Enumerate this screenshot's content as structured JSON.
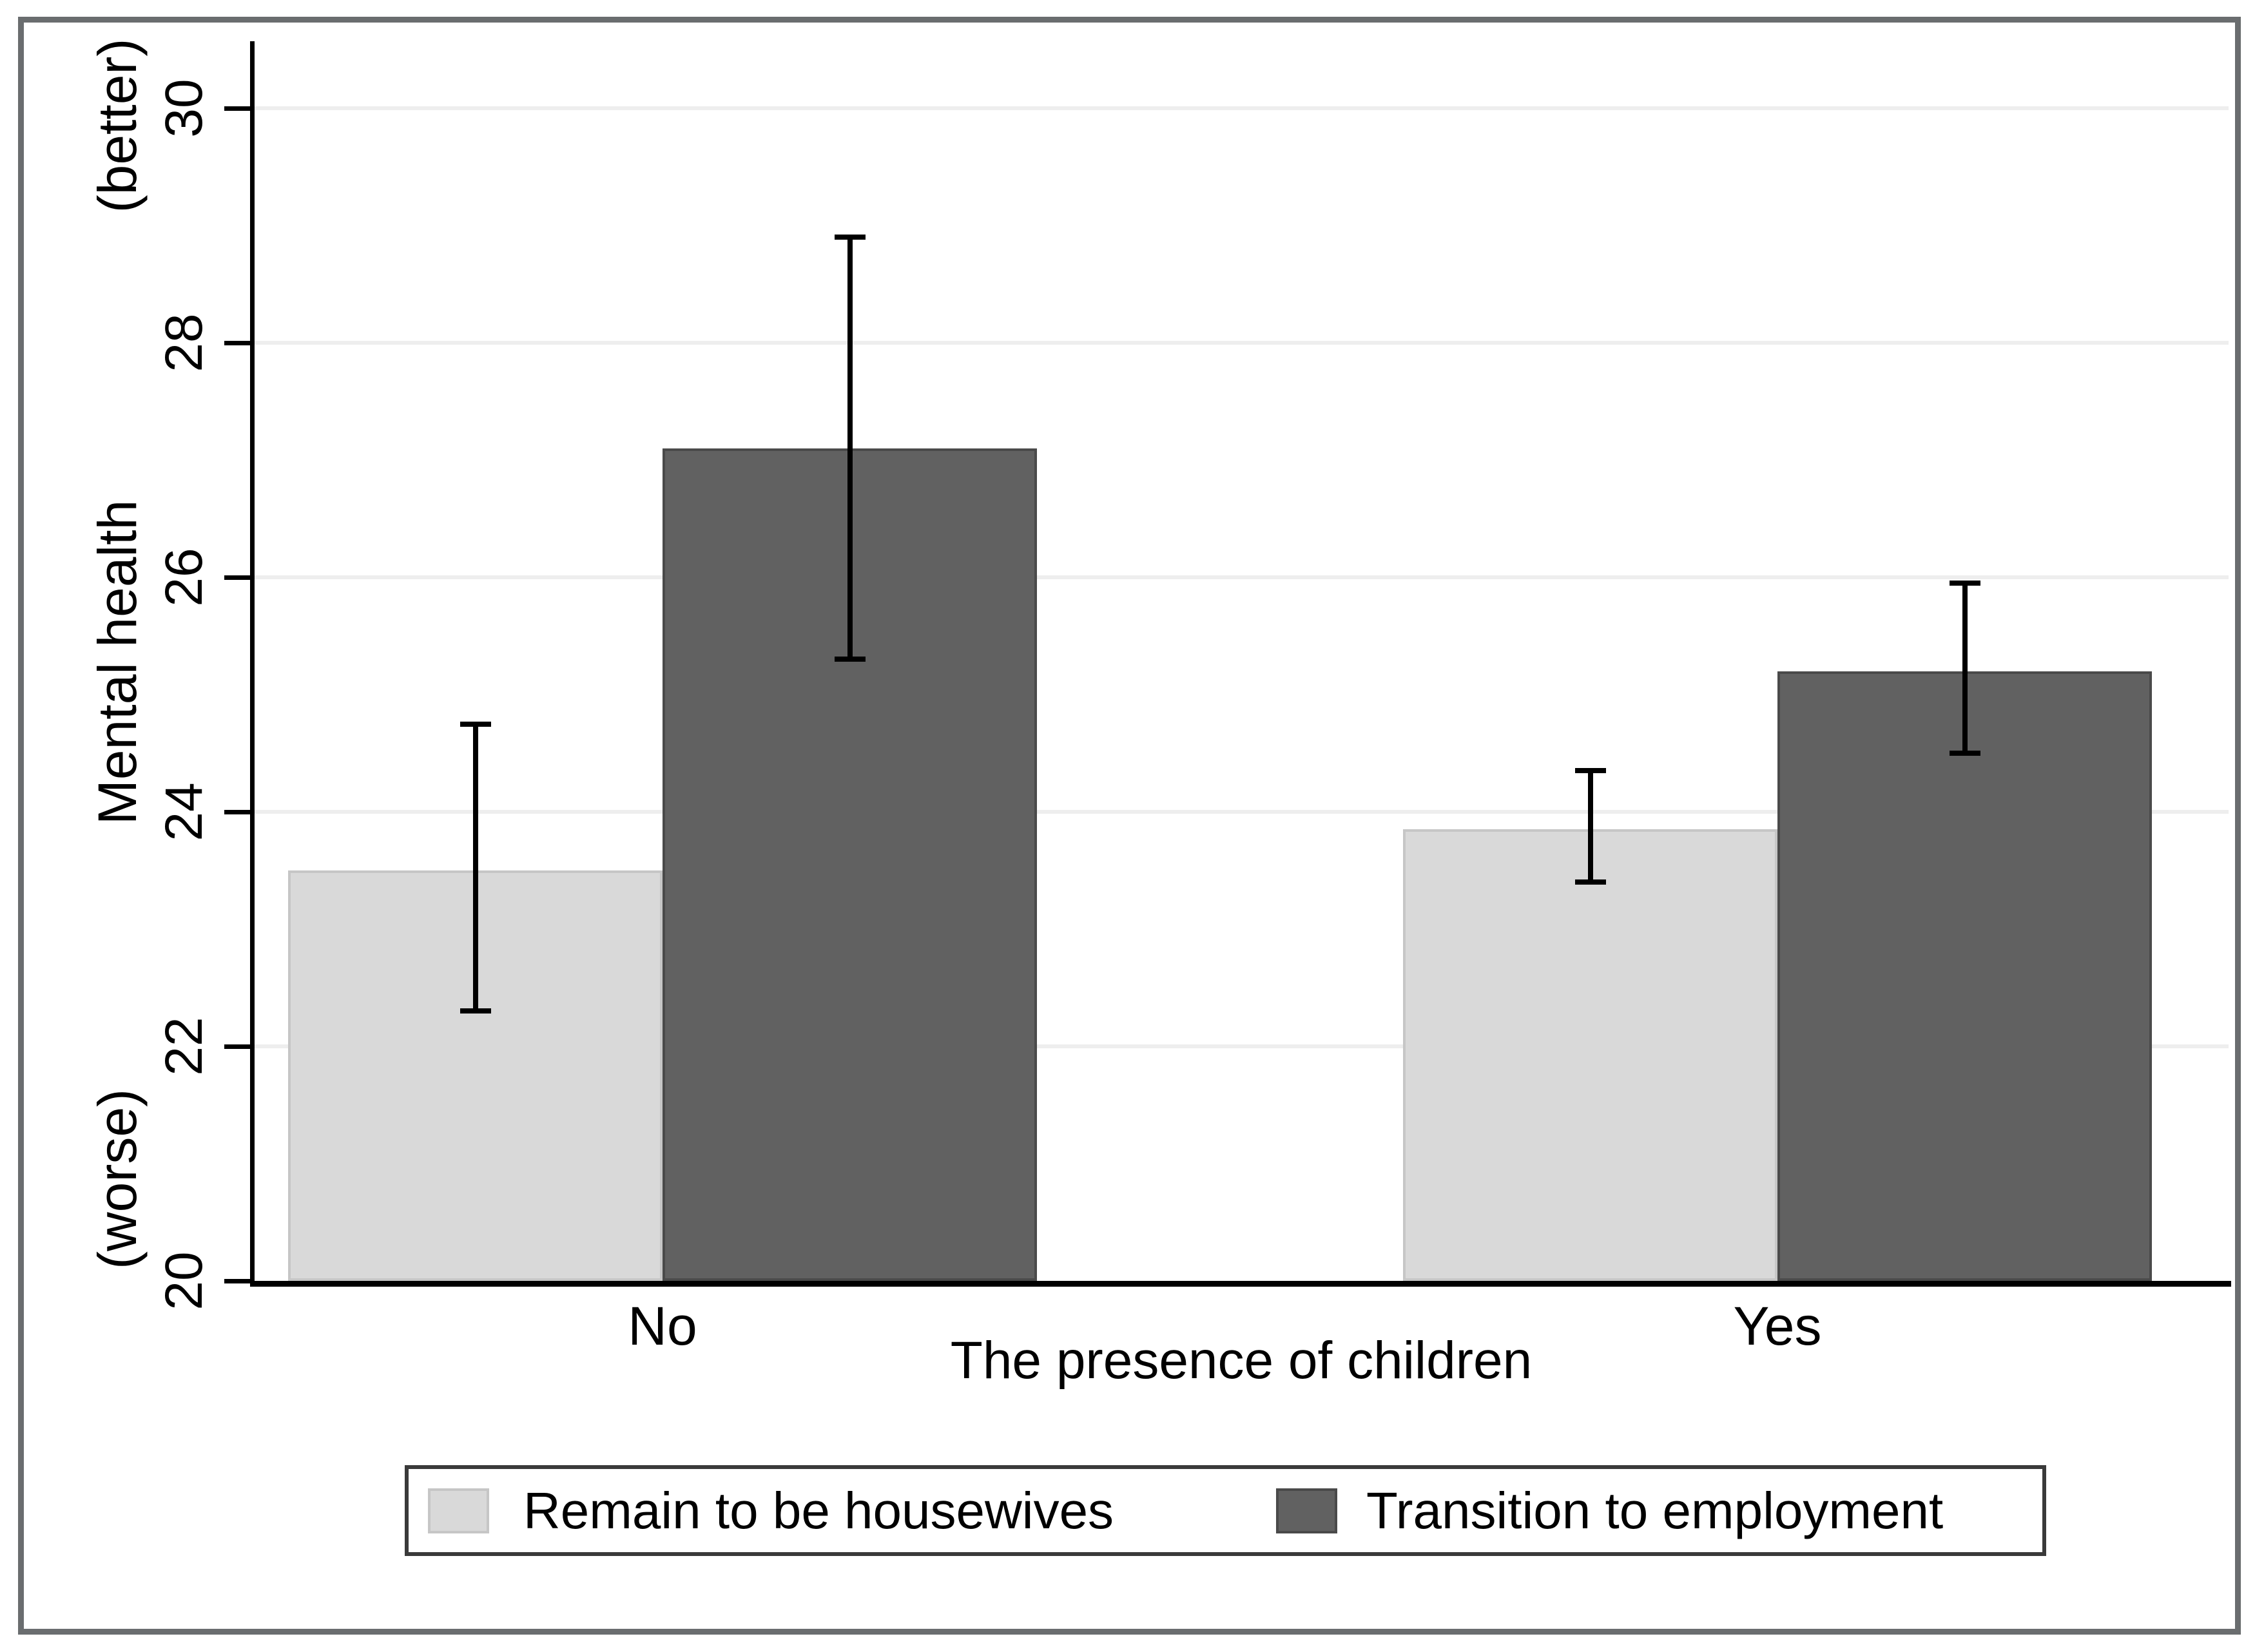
{
  "figure": {
    "background": "#ffffff",
    "frame_color": "#6a6d6f",
    "gridline_color": "#eeeeee",
    "axis_color": "#000000"
  },
  "y_axis": {
    "title": "Mental health",
    "top_label": "(better)",
    "bottom_label": "(worse)",
    "tick_labels": [
      "20",
      "22",
      "24",
      "26",
      "28",
      "30"
    ]
  },
  "x_axis": {
    "title": "The presence of children",
    "categories": [
      "No",
      "Yes"
    ]
  },
  "legend": {
    "items": [
      {
        "key": "housewives",
        "label": "Remain to be housewives",
        "color": "#d9d9d9",
        "border_color": "#c6c6c6"
      },
      {
        "key": "employment",
        "label": "Transition to employment",
        "color": "#616161",
        "border_color": "#4a4a4a"
      }
    ]
  },
  "chart_data": {
    "type": "bar",
    "categories": [
      "No",
      "Yes"
    ],
    "series": [
      {
        "name": "Remain to be housewives",
        "key": "housewives",
        "color": "#d9d9d9",
        "border_color": "#c6c6c6",
        "values": [
          23.5,
          23.85
        ],
        "ci_low": [
          22.3,
          23.4
        ],
        "ci_high": [
          24.75,
          24.35
        ]
      },
      {
        "name": "Transition to employment",
        "key": "employment",
        "color": "#616161",
        "border_color": "#4a4a4a",
        "values": [
          27.1,
          25.2
        ],
        "ci_low": [
          25.3,
          24.5
        ],
        "ci_high": [
          28.9,
          25.95
        ]
      }
    ],
    "title": "",
    "xlabel": "The presence of children",
    "ylabel": "Mental health",
    "ylabel_top_annotation": "(better)",
    "ylabel_bottom_annotation": "(worse)",
    "yticks": [
      20,
      22,
      24,
      26,
      28,
      30
    ],
    "ylim": [
      20,
      30
    ],
    "grid": true,
    "error_bars": true,
    "error_bar_color": "#000000",
    "legend_position": "bottom"
  }
}
